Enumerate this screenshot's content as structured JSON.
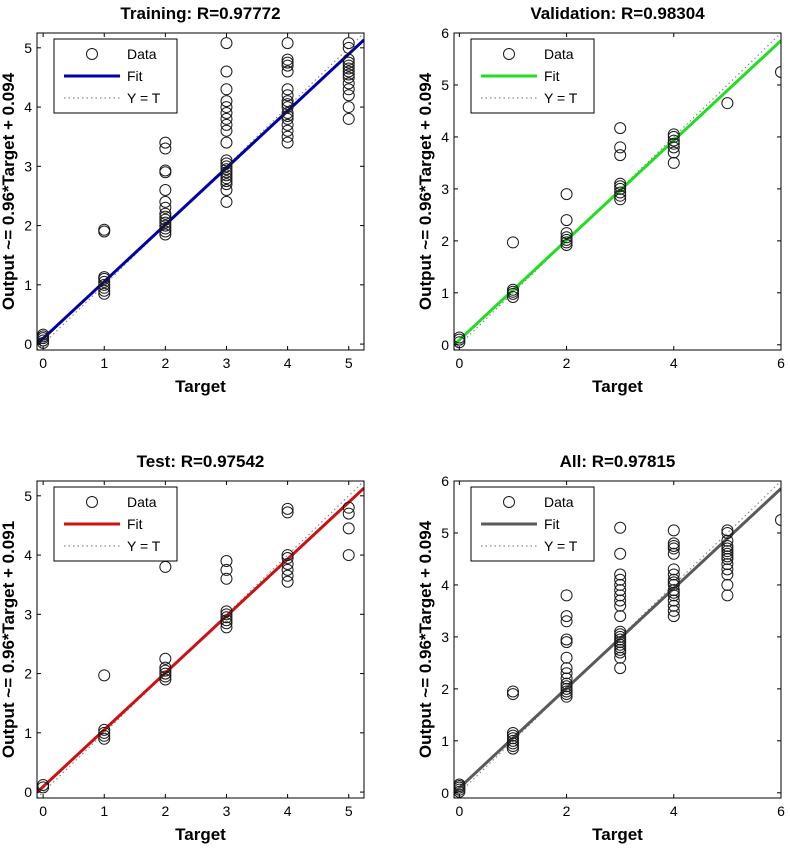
{
  "chart_data": [
    {
      "type": "scatter",
      "title": "Training: R=0.97772",
      "xlabel": "Target",
      "ylabel": "Output ~= 0.96*Target + 0.094",
      "xlim": [
        -0.1,
        5.25
      ],
      "ylim": [
        -0.1,
        5.25
      ],
      "xticks": [
        0,
        1,
        2,
        3,
        4,
        5
      ],
      "yticks": [
        0,
        1,
        2,
        3,
        4,
        5
      ],
      "fit": {
        "slope": 0.96,
        "intercept": 0.094,
        "color": "#0000a8"
      },
      "legend": [
        "Data",
        "Fit",
        "Y = T"
      ],
      "legend_position": "top-left",
      "series": [
        {
          "name": "Data",
          "points": [
            [
              0,
              0.02
            ],
            [
              0,
              0.06
            ],
            [
              0,
              0.1
            ],
            [
              0,
              0.13
            ],
            [
              0,
              0.16
            ],
            [
              1,
              0.85
            ],
            [
              1,
              0.9
            ],
            [
              1,
              0.95
            ],
            [
              1,
              1.0
            ],
            [
              1,
              1.05
            ],
            [
              1,
              1.1
            ],
            [
              1,
              1.13
            ],
            [
              1,
              1.9
            ],
            [
              1,
              1.93
            ],
            [
              2,
              1.85
            ],
            [
              2,
              1.9
            ],
            [
              2,
              1.95
            ],
            [
              2,
              2.0
            ],
            [
              2,
              2.05
            ],
            [
              2,
              2.1
            ],
            [
              2,
              2.15
            ],
            [
              2,
              2.2
            ],
            [
              2,
              2.3
            ],
            [
              2,
              2.4
            ],
            [
              2,
              2.6
            ],
            [
              2,
              2.9
            ],
            [
              2,
              2.93
            ],
            [
              2,
              3.3
            ],
            [
              2,
              3.4
            ],
            [
              3,
              2.4
            ],
            [
              3,
              2.6
            ],
            [
              3,
              2.7
            ],
            [
              3,
              2.75
            ],
            [
              3,
              2.8
            ],
            [
              3,
              2.85
            ],
            [
              3,
              2.9
            ],
            [
              3,
              2.95
            ],
            [
              3,
              3.0
            ],
            [
              3,
              3.05
            ],
            [
              3,
              3.1
            ],
            [
              3,
              3.4
            ],
            [
              3,
              3.6
            ],
            [
              3,
              3.7
            ],
            [
              3,
              3.8
            ],
            [
              3,
              3.9
            ],
            [
              3,
              4.0
            ],
            [
              3,
              4.1
            ],
            [
              3,
              4.3
            ],
            [
              3,
              4.6
            ],
            [
              3,
              5.08
            ],
            [
              4,
              3.4
            ],
            [
              4,
              3.5
            ],
            [
              4,
              3.6
            ],
            [
              4,
              3.7
            ],
            [
              4,
              3.8
            ],
            [
              4,
              3.85
            ],
            [
              4,
              3.9
            ],
            [
              4,
              4.0
            ],
            [
              4,
              4.05
            ],
            [
              4,
              4.1
            ],
            [
              4,
              4.2
            ],
            [
              4,
              4.3
            ],
            [
              4,
              4.6
            ],
            [
              4,
              4.7
            ],
            [
              4,
              4.75
            ],
            [
              4,
              4.8
            ],
            [
              4,
              5.08
            ],
            [
              5,
              3.8
            ],
            [
              5,
              4.0
            ],
            [
              5,
              4.2
            ],
            [
              5,
              4.3
            ],
            [
              5,
              4.4
            ],
            [
              5,
              4.5
            ],
            [
              5,
              4.55
            ],
            [
              5,
              4.6
            ],
            [
              5,
              4.65
            ],
            [
              5,
              4.7
            ],
            [
              5,
              4.75
            ],
            [
              5,
              4.8
            ],
            [
              5,
              5.0
            ],
            [
              5,
              5.08
            ]
          ]
        }
      ]
    },
    {
      "type": "scatter",
      "title": "Validation: R=0.98304",
      "xlabel": "Target",
      "ylabel": "Output ~= 0.96*Target + 0.094",
      "xlim": [
        -0.1,
        6
      ],
      "ylim": [
        -0.1,
        6
      ],
      "xticks": [
        0,
        2,
        4,
        6
      ],
      "yticks": [
        0,
        1,
        2,
        3,
        4,
        5,
        6
      ],
      "fit": {
        "slope": 0.96,
        "intercept": 0.094,
        "color": "#22dd22"
      },
      "legend": [
        "Data",
        "Fit",
        "Y = T"
      ],
      "legend_position": "top-left",
      "series": [
        {
          "name": "Data",
          "points": [
            [
              0,
              0.05
            ],
            [
              0,
              0.1
            ],
            [
              0,
              0.14
            ],
            [
              1,
              0.92
            ],
            [
              1,
              0.98
            ],
            [
              1,
              1.02
            ],
            [
              1,
              1.06
            ],
            [
              1,
              1.97
            ],
            [
              2,
              1.92
            ],
            [
              2,
              1.97
            ],
            [
              2,
              2.02
            ],
            [
              2,
              2.07
            ],
            [
              2,
              2.15
            ],
            [
              2,
              2.4
            ],
            [
              2,
              2.9
            ],
            [
              3,
              2.8
            ],
            [
              3,
              2.87
            ],
            [
              3,
              2.93
            ],
            [
              3,
              3.0
            ],
            [
              3,
              3.05
            ],
            [
              3,
              3.1
            ],
            [
              3,
              3.65
            ],
            [
              3,
              3.8
            ],
            [
              3,
              4.17
            ],
            [
              4,
              3.5
            ],
            [
              4,
              3.7
            ],
            [
              4,
              3.8
            ],
            [
              4,
              3.87
            ],
            [
              4,
              3.93
            ],
            [
              4,
              4.0
            ],
            [
              4,
              4.05
            ],
            [
              5,
              4.65
            ],
            [
              6,
              5.25
            ]
          ]
        }
      ]
    },
    {
      "type": "scatter",
      "title": "Test: R=0.97542",
      "xlabel": "Target",
      "ylabel": "Output ~= 0.96*Target + 0.091",
      "xlim": [
        -0.1,
        5.25
      ],
      "ylim": [
        -0.1,
        5.25
      ],
      "xticks": [
        0,
        1,
        2,
        3,
        4,
        5
      ],
      "yticks": [
        0,
        1,
        2,
        3,
        4,
        5
      ],
      "fit": {
        "slope": 0.96,
        "intercept": 0.091,
        "color": "#cc1111"
      },
      "legend": [
        "Data",
        "Fit",
        "Y = T"
      ],
      "legend_position": "top-left",
      "series": [
        {
          "name": "Data",
          "points": [
            [
              0,
              0.08
            ],
            [
              0,
              0.12
            ],
            [
              1,
              0.9
            ],
            [
              1,
              0.95
            ],
            [
              1,
              1.0
            ],
            [
              1,
              1.05
            ],
            [
              1,
              1.97
            ],
            [
              2,
              1.9
            ],
            [
              2,
              1.95
            ],
            [
              2,
              2.0
            ],
            [
              2,
              2.05
            ],
            [
              2,
              2.1
            ],
            [
              2,
              2.25
            ],
            [
              2,
              3.8
            ],
            [
              3,
              2.78
            ],
            [
              3,
              2.85
            ],
            [
              3,
              2.9
            ],
            [
              3,
              2.95
            ],
            [
              3,
              3.0
            ],
            [
              3,
              3.05
            ],
            [
              3,
              3.6
            ],
            [
              3,
              3.75
            ],
            [
              3,
              3.9
            ],
            [
              4,
              3.55
            ],
            [
              4,
              3.65
            ],
            [
              4,
              3.75
            ],
            [
              4,
              3.85
            ],
            [
              4,
              3.95
            ],
            [
              4,
              4.0
            ],
            [
              4,
              4.72
            ],
            [
              4,
              4.78
            ],
            [
              5,
              4.0
            ],
            [
              5,
              4.45
            ],
            [
              5,
              4.7
            ],
            [
              5,
              4.8
            ]
          ]
        }
      ]
    },
    {
      "type": "scatter",
      "title": "All: R=0.97815",
      "xlabel": "Target",
      "ylabel": "Output ~= 0.96*Target + 0.094",
      "xlim": [
        -0.1,
        6
      ],
      "ylim": [
        -0.1,
        6
      ],
      "xticks": [
        0,
        2,
        4,
        6
      ],
      "yticks": [
        0,
        1,
        2,
        3,
        4,
        5,
        6
      ],
      "fit": {
        "slope": 0.96,
        "intercept": 0.094,
        "color": "#5a5a5a"
      },
      "legend": [
        "Data",
        "Fit",
        "Y = T"
      ],
      "legend_position": "top-left",
      "series": [
        {
          "name": "Data",
          "points": [
            [
              0,
              0.02
            ],
            [
              0,
              0.06
            ],
            [
              0,
              0.1
            ],
            [
              0,
              0.13
            ],
            [
              0,
              0.16
            ],
            [
              1,
              0.85
            ],
            [
              1,
              0.9
            ],
            [
              1,
              0.95
            ],
            [
              1,
              1.0
            ],
            [
              1,
              1.05
            ],
            [
              1,
              1.1
            ],
            [
              1,
              1.15
            ],
            [
              1,
              1.9
            ],
            [
              1,
              1.95
            ],
            [
              2,
              1.85
            ],
            [
              2,
              1.9
            ],
            [
              2,
              1.95
            ],
            [
              2,
              2.0
            ],
            [
              2,
              2.05
            ],
            [
              2,
              2.1
            ],
            [
              2,
              2.2
            ],
            [
              2,
              2.3
            ],
            [
              2,
              2.4
            ],
            [
              2,
              2.6
            ],
            [
              2,
              2.9
            ],
            [
              2,
              2.95
            ],
            [
              2,
              3.3
            ],
            [
              2,
              3.4
            ],
            [
              2,
              3.8
            ],
            [
              3,
              2.4
            ],
            [
              3,
              2.6
            ],
            [
              3,
              2.7
            ],
            [
              3,
              2.75
            ],
            [
              3,
              2.8
            ],
            [
              3,
              2.85
            ],
            [
              3,
              2.9
            ],
            [
              3,
              2.95
            ],
            [
              3,
              3.0
            ],
            [
              3,
              3.05
            ],
            [
              3,
              3.1
            ],
            [
              3,
              3.4
            ],
            [
              3,
              3.6
            ],
            [
              3,
              3.7
            ],
            [
              3,
              3.8
            ],
            [
              3,
              3.9
            ],
            [
              3,
              4.0
            ],
            [
              3,
              4.1
            ],
            [
              3,
              4.2
            ],
            [
              3,
              4.6
            ],
            [
              3,
              5.1
            ],
            [
              4,
              3.4
            ],
            [
              4,
              3.5
            ],
            [
              4,
              3.6
            ],
            [
              4,
              3.7
            ],
            [
              4,
              3.8
            ],
            [
              4,
              3.85
            ],
            [
              4,
              3.9
            ],
            [
              4,
              4.0
            ],
            [
              4,
              4.05
            ],
            [
              4,
              4.1
            ],
            [
              4,
              4.2
            ],
            [
              4,
              4.3
            ],
            [
              4,
              4.6
            ],
            [
              4,
              4.7
            ],
            [
              4,
              4.75
            ],
            [
              4,
              4.8
            ],
            [
              4,
              5.05
            ],
            [
              5,
              3.8
            ],
            [
              5,
              4.0
            ],
            [
              5,
              4.2
            ],
            [
              5,
              4.3
            ],
            [
              5,
              4.4
            ],
            [
              5,
              4.5
            ],
            [
              5,
              4.55
            ],
            [
              5,
              4.6
            ],
            [
              5,
              4.65
            ],
            [
              5,
              4.7
            ],
            [
              5,
              4.75
            ],
            [
              5,
              4.85
            ],
            [
              5,
              5.0
            ],
            [
              5,
              5.05
            ],
            [
              6,
              5.25
            ]
          ]
        }
      ]
    }
  ]
}
